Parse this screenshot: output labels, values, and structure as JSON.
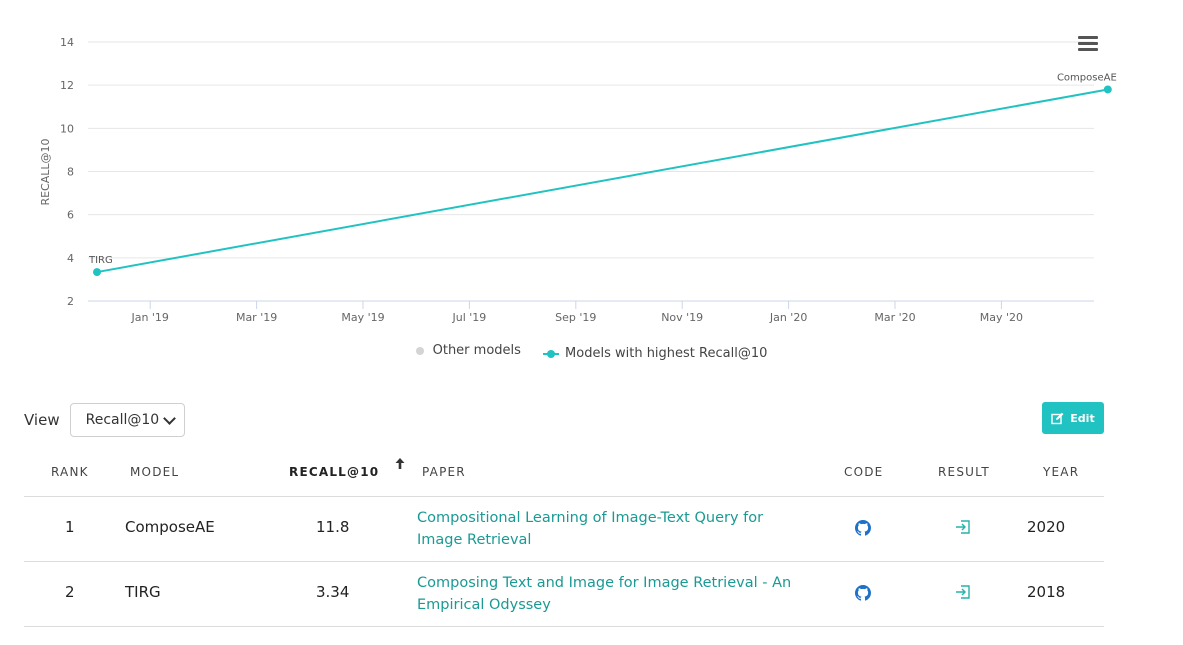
{
  "chart_data": {
    "type": "line",
    "ylabel": "RECALL@10",
    "ylim": [
      2,
      14
    ],
    "yticks": [
      2,
      4,
      6,
      8,
      10,
      12,
      14
    ],
    "xticks": [
      "Jan '19",
      "Mar '19",
      "May '19",
      "Jul '19",
      "Sep '19",
      "Nov '19",
      "Jan '20",
      "Mar '20",
      "May '20"
    ],
    "grid": true,
    "legend_position": "bottom-center",
    "series": [
      {
        "name": "Models with highest Recall@10",
        "color": "#21c2c2",
        "points": [
          {
            "date": "2018-12",
            "value": 3.34,
            "label": "TIRG"
          },
          {
            "date": "2020-07",
            "value": 11.8,
            "label": "ComposeAE"
          }
        ]
      }
    ],
    "legend": [
      {
        "label": "Other models",
        "color": "#d4d4d4"
      },
      {
        "label": "Models with highest Recall@10",
        "color": "#21c2c2"
      }
    ]
  },
  "controls": {
    "view_label": "View",
    "view_selected": "Recall@10",
    "edit_label": "Edit"
  },
  "table": {
    "headers": {
      "rank": "RANK",
      "model": "MODEL",
      "metric": "RECALL@10",
      "paper": "PAPER",
      "code": "CODE",
      "result": "RESULT",
      "year": "YEAR"
    },
    "rows": [
      {
        "rank": "1",
        "model": "ComposeAE",
        "metric": "11.8",
        "paper": "Compositional Learning of Image-Text Query for Image Retrieval",
        "year": "2020"
      },
      {
        "rank": "2",
        "model": "TIRG",
        "metric": "3.34",
        "paper": "Composing Text and Image for Image Retrieval - An Empirical Odyssey",
        "year": "2018"
      }
    ]
  },
  "icons": {
    "menu": "hamburger-menu-icon",
    "edit": "edit-icon",
    "sort": "sort-up-arrow-icon",
    "code": "github-icon",
    "result": "result-enter-icon"
  }
}
